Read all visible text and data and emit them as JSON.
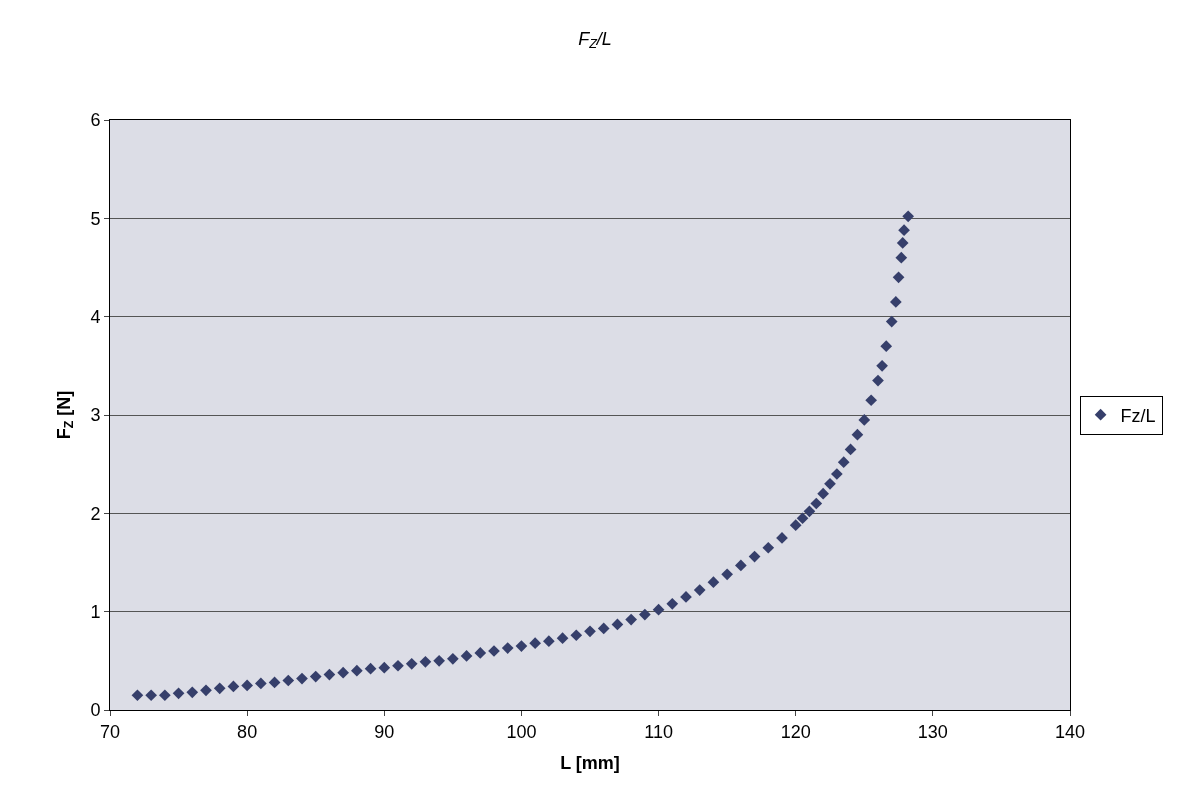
{
  "chart_data": {
    "type": "scatter",
    "title": "F$_{Z}$/L",
    "xlabel": "L [mm]",
    "ylabel": "F$_{Z}$ [N]",
    "xlim": [
      70,
      140
    ],
    "xticks": [
      70,
      80,
      90,
      100,
      110,
      120,
      130,
      140
    ],
    "ylim": [
      0,
      6
    ],
    "yticks": [
      0,
      1,
      2,
      3,
      4,
      5,
      6
    ],
    "grid": "y",
    "legend": "right",
    "marker": "diamond",
    "series": [
      {
        "name": "Fz/L",
        "color": "#363f6b",
        "x": [
          72,
          73,
          74,
          75,
          76,
          77,
          78,
          79,
          80,
          81,
          82,
          83,
          84,
          85,
          86,
          87,
          88,
          89,
          90,
          91,
          92,
          93,
          94,
          95,
          96,
          97,
          98,
          99,
          100,
          101,
          102,
          103,
          104,
          105,
          106,
          107,
          108,
          109,
          110,
          111,
          112,
          113,
          114,
          115,
          116,
          117,
          118,
          119,
          120,
          120.5,
          121,
          121.5,
          122,
          122.5,
          123,
          123.5,
          124,
          124.5,
          125,
          125.5,
          126,
          126.3,
          126.6,
          127,
          127.3,
          127.5,
          127.7,
          127.8,
          127.9,
          128.2
        ],
        "values": [
          0.15,
          0.15,
          0.15,
          0.17,
          0.18,
          0.2,
          0.22,
          0.24,
          0.25,
          0.27,
          0.28,
          0.3,
          0.32,
          0.34,
          0.36,
          0.38,
          0.4,
          0.42,
          0.43,
          0.45,
          0.47,
          0.49,
          0.5,
          0.52,
          0.55,
          0.58,
          0.6,
          0.63,
          0.65,
          0.68,
          0.7,
          0.73,
          0.76,
          0.8,
          0.83,
          0.87,
          0.92,
          0.97,
          1.02,
          1.08,
          1.15,
          1.22,
          1.3,
          1.38,
          1.47,
          1.56,
          1.65,
          1.75,
          1.88,
          1.95,
          2.02,
          2.1,
          2.2,
          2.3,
          2.4,
          2.52,
          2.65,
          2.8,
          2.95,
          3.15,
          3.35,
          3.5,
          3.7,
          3.95,
          4.15,
          4.4,
          4.6,
          4.75,
          4.88,
          5.02
        ]
      }
    ]
  }
}
